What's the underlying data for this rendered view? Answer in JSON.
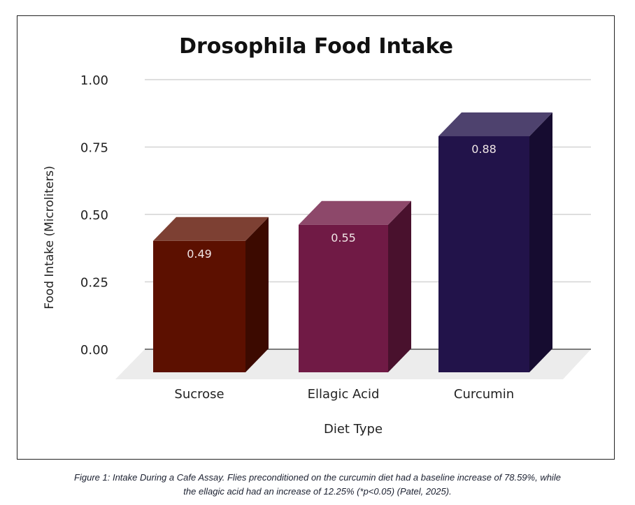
{
  "chart_data": {
    "type": "bar",
    "title": "Drosophila Food Intake",
    "xlabel": "Diet Type",
    "ylabel": "Food Intake (Microliters)",
    "ylim": [
      0,
      1.0
    ],
    "yticks": [
      "0.00",
      "0.25",
      "0.50",
      "0.75",
      "1.00"
    ],
    "grid": true,
    "style": "3d",
    "categories": [
      "Sucrose",
      "Ellagic Acid",
      "Curcumin"
    ],
    "values": [
      0.49,
      0.55,
      0.88
    ],
    "data_labels": [
      "0.49",
      "0.55",
      "0.88"
    ],
    "colors": [
      "#5c1000",
      "#701a45",
      "#22134a"
    ]
  },
  "caption": {
    "line1": "Figure 1: Intake During a Cafe Assay. Flies preconditioned on the curcumin diet had a baseline increase of 78.59%, while",
    "line2": "the ellagic acid had an increase of 12.25% (*p<0.05) (Patel, 2025)."
  }
}
